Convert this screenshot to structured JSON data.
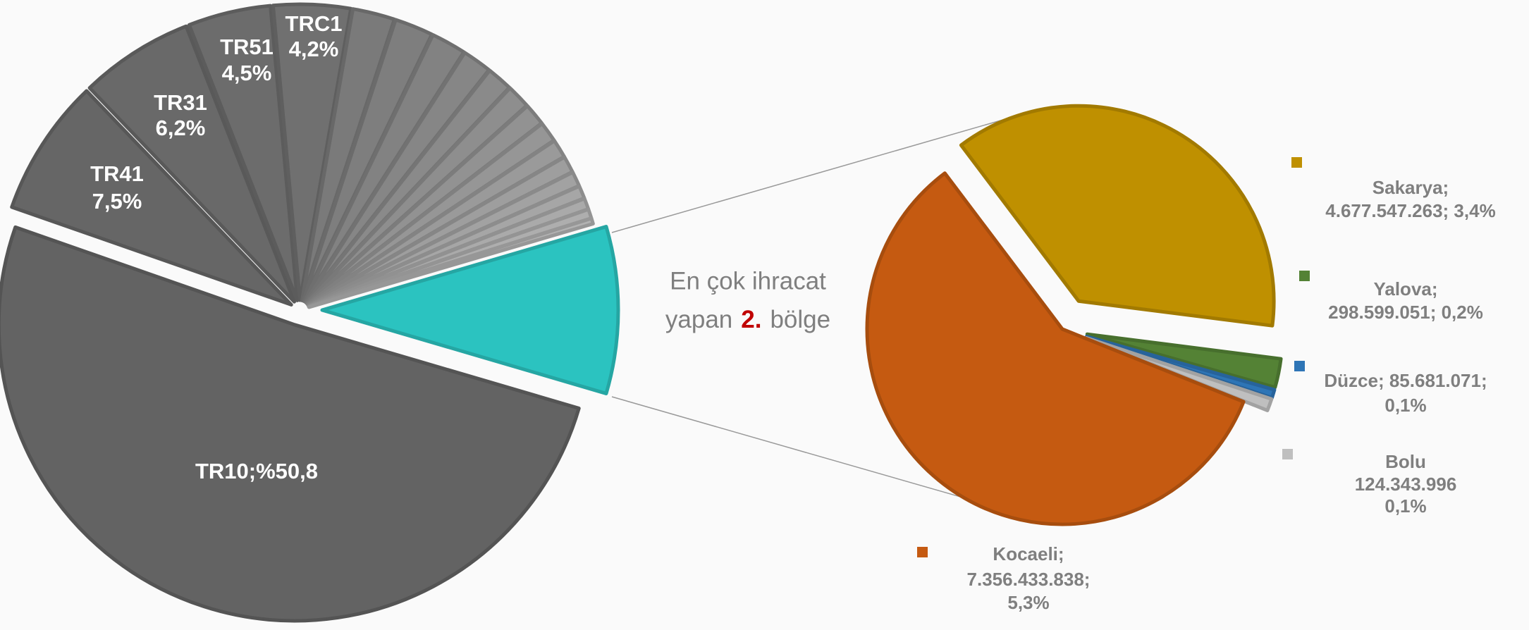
{
  "chart_data": [
    {
      "type": "pie",
      "values": [
        50.8,
        7.5,
        6.2,
        4.5,
        4.2,
        2.3,
        2.1,
        1.9,
        1.6,
        1.4,
        1.3,
        1.2,
        1.1,
        1.0,
        0.9,
        0.8,
        0.7,
        0.6,
        0.5,
        0.3,
        9.1
      ],
      "data_labels": [
        [
          "TR10;%50,8"
        ],
        [
          "TR41",
          "7,5%"
        ],
        [
          "TR31",
          "6,2%"
        ],
        [
          "TR51",
          "4,5%"
        ],
        [
          "TRC1",
          "4,2%"
        ],
        null,
        null,
        null,
        null,
        null,
        null,
        null,
        null,
        null,
        null,
        null,
        null,
        null,
        null,
        null,
        null
      ],
      "colors": [
        "#636363",
        "#666666",
        "#696969",
        "#6c6c6c",
        "#707070",
        "#7a7a7a",
        "#7e7e7e",
        "#828282",
        "#868686",
        "#8a8a8a",
        "#8e8e8e",
        "#929292",
        "#969696",
        "#9a9a9a",
        "#9e9e9e",
        "#a2a2a2",
        "#a6a6a6",
        "#aaaaaa",
        "#aeaeae",
        "#b2b2b2",
        "#2bc3c0"
      ]
    },
    {
      "type": "pie",
      "values": [
        4677547263,
        298599051,
        85681071,
        124343996,
        7356433838
      ],
      "data_labels": [
        [
          "Sakarya;",
          "4.677.547.263; 3,4%"
        ],
        [
          "Yalova;",
          "298.599.051; 0,2%"
        ],
        [
          "Düzce; 85.681.071;",
          "0,1%"
        ],
        [
          "Bolu",
          "124.343.996",
          "0,1%"
        ],
        [
          "Kocaeli;",
          "7.356.433.838;",
          "5,3%"
        ]
      ],
      "colors": [
        "#bf9000",
        "#548235",
        "#2e75b6",
        "#bfbfbf",
        "#c55a11"
      ]
    }
  ],
  "annotation": {
    "line1": "En çok ihracat",
    "line2": [
      "yapan",
      "2.",
      "bölge"
    ]
  }
}
